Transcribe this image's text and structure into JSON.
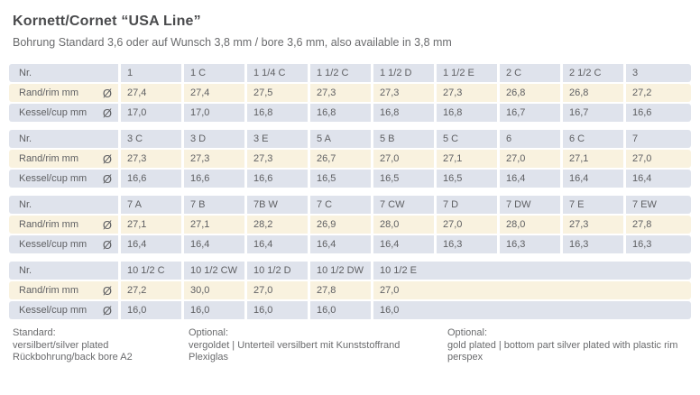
{
  "page": {
    "title": "Kornett/Cornet “USA Line”",
    "subtitle": "Bohrung Standard 3,6 oder auf Wunsch 3,8 mm / bore 3,6 mm, also available in 3,8 mm"
  },
  "table": {
    "row_labels": {
      "nr": "Nr.",
      "rim": "Rand/rim mm",
      "cup": "Kessel/cup mm"
    },
    "diameter_symbol": "Ø",
    "blocks": [
      {
        "nr": [
          "1",
          "1 C",
          "1 1/4 C",
          "1 1/2 C",
          "1 1/2 D",
          "1 1/2 E",
          "2 C",
          "2 1/2 C",
          "3"
        ],
        "rim": [
          "27,4",
          "27,4",
          "27,5",
          "27,3",
          "27,3",
          "27,3",
          "26,8",
          "26,8",
          "27,2"
        ],
        "cup": [
          "17,0",
          "17,0",
          "16,8",
          "16,8",
          "16,8",
          "16,8",
          "16,7",
          "16,7",
          "16,6"
        ]
      },
      {
        "nr": [
          "3 C",
          "3 D",
          "3 E",
          "5 A",
          "5 B",
          "5 C",
          "6",
          "6 C",
          "7"
        ],
        "rim": [
          "27,3",
          "27,3",
          "27,3",
          "26,7",
          "27,0",
          "27,1",
          "27,0",
          "27,1",
          "27,0"
        ],
        "cup": [
          "16,6",
          "16,6",
          "16,6",
          "16,5",
          "16,5",
          "16,5",
          "16,4",
          "16,4",
          "16,4"
        ]
      },
      {
        "nr": [
          "7 A",
          "7 B",
          "7B W",
          "7 C",
          "7 CW",
          "7 D",
          "7 DW",
          "7 E",
          "7 EW"
        ],
        "rim": [
          "27,1",
          "27,1",
          "28,2",
          "26,9",
          "28,0",
          "27,0",
          "28,0",
          "27,3",
          "27,8"
        ],
        "cup": [
          "16,4",
          "16,4",
          "16,4",
          "16,4",
          "16,4",
          "16,3",
          "16,3",
          "16,3",
          "16,3"
        ]
      },
      {
        "nr": [
          "10 1/2 C",
          "10 1/2 CW",
          "10 1/2 D",
          "10 1/2 DW",
          "10 1/2 E"
        ],
        "rim": [
          "27,2",
          "30,0",
          "27,0",
          "27,8",
          "27,0"
        ],
        "cup": [
          "16,0",
          "16,0",
          "16,0",
          "16,0",
          "16,0"
        ]
      }
    ]
  },
  "footer": {
    "columns": [
      {
        "heading": "Standard:",
        "lines": [
          "versilbert/silver plated",
          "Rückbohrung/back bore A2"
        ]
      },
      {
        "heading": "Optional:",
        "lines": [
          "vergoldet | Unterteil versilbert mit Kunststoffrand",
          "Plexiglas"
        ]
      },
      {
        "heading": "Optional:",
        "lines": [
          "gold plated | bottom part silver plated with plastic rim",
          "perspex"
        ]
      }
    ]
  },
  "colors": {
    "row_blue": "#dfe3ec",
    "row_cream": "#f9f2df",
    "text_dark": "#4a4b4d",
    "text_gray": "#5f6063"
  }
}
